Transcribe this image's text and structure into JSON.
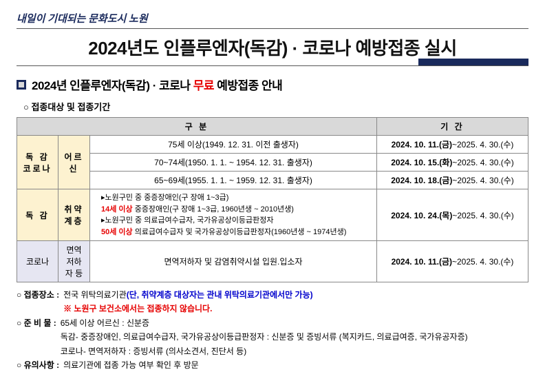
{
  "slogan": "내일이 기대되는 문화도시 노원",
  "title": "2024년도 인플루엔자(독감) · 코로나 예방접종 실시",
  "subtitle_pre": "2024년 인플루엔자(독감) · 코로나 ",
  "subtitle_red": "무료",
  "subtitle_post": " 예방접종 안내",
  "section1": "접종대상 및 접종기간",
  "colors": {
    "navy": "#1a2a5c",
    "red": "#e60000",
    "blue": "#0000cc",
    "band1": "#d9d9d9",
    "band2": "#fdf2d0",
    "band3": "#e6e6f2"
  },
  "table": {
    "head": {
      "category": "구   분",
      "period": "기   간"
    },
    "row_group1": {
      "label": "독 감\n코로나",
      "sub": "어르신"
    },
    "r1": {
      "desc": "75세 이상(1949. 12. 31. 이전 출생자)",
      "date_b": "2024. 10. 11.(금)",
      "date_r": "~2025. 4. 30.(수)"
    },
    "r2": {
      "desc": "70~74세(1950. 1. 1. ~ 1954. 12. 31. 출생자)",
      "date_b": "2024. 10. 15.(화)",
      "date_r": "~2025. 4. 30.(수)"
    },
    "r3": {
      "desc": "65~69세(1955. 1. 1. ~ 1959. 12. 31. 출생자)",
      "date_b": "2024. 10. 18.(금)",
      "date_r": "~2025. 4. 30.(수)"
    },
    "row_group2": {
      "label": "독 감",
      "sub": "취약\n계층"
    },
    "r4": {
      "line1": "▸노원구민 중 중증장애인(구 장애 1~3급)",
      "line2_red": "   14세 이상",
      "line2_rest": " 중증장애인(구 장애 1~3급, 1960년생 ~ 2010년생)",
      "line3": "▸노원구민 중 의료급여수급자, 국가유공상이등급판정자",
      "line4_red": "   50세 이상",
      "line4_rest": " 의료급여수급자 및 국가유공상이등급판정자(1960년생 ~ 1974년생)",
      "date_b": "2024. 10. 24.(목)",
      "date_r": "~2025. 4. 30.(수)"
    },
    "row_group3": {
      "label": "코로나",
      "sub": "면역\n저하\n자 등"
    },
    "r5": {
      "desc": "면역저하자 및 감염취약시설 입원.입소자",
      "date_b": "2024. 10. 11.(금)",
      "date_r": "~2025. 4. 30.(수)"
    }
  },
  "notes": {
    "n1_label": "○ 접종장소 :",
    "n1_text": "전국 위탁의료기관",
    "n1_blue": "(단, 취약계층 대상자는 관내 위탁의료기관에서만 가능)",
    "n1_red": "※ 노원구 보건소에서는 접종하지 않습니다.",
    "n2_label": "○ 준 비 물 :",
    "n2_l1": "65세 이상 어르신 : 신분증",
    "n2_l2": "독감- 중증장애인, 의료급여수급자, 국가유공상이등급판정자 : 신분증 및 증빙서류 (복지카드, 의료급여증, 국가유공자증)",
    "n2_l3": "코로나- 면역저하자 : 증빙서류 (의사소견서, 진단서 등)",
    "n3_label": "○ 유의사항 :",
    "n3_text": "의료기관에 접종 가능 여부 확인 후 방문"
  }
}
